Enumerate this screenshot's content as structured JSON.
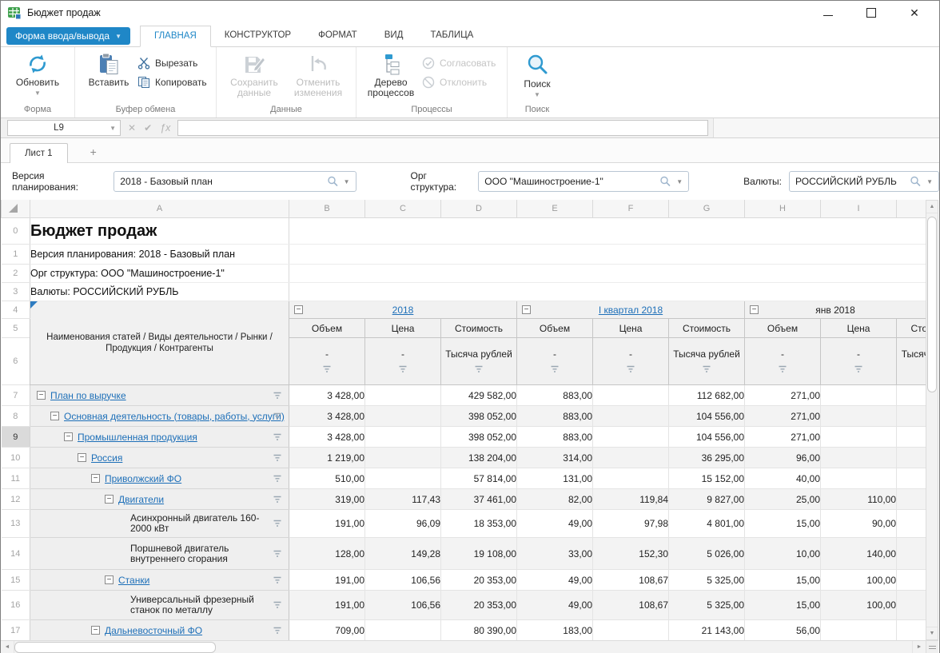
{
  "window": {
    "title": "Бюджет продаж"
  },
  "appbar": {
    "app_button": "Форма ввода/вывода",
    "tabs": [
      {
        "label": "ГЛАВНАЯ",
        "active": true
      },
      {
        "label": "КОНСТРУКТОР",
        "active": false
      },
      {
        "label": "ФОРМАТ",
        "active": false
      },
      {
        "label": "ВИД",
        "active": false
      },
      {
        "label": "ТАБЛИЦА",
        "active": false
      }
    ]
  },
  "ribbon": {
    "groups": {
      "forma": {
        "label": "Форма",
        "refresh": "Обновить"
      },
      "clipboard": {
        "label": "Буфер обмена",
        "paste": "Вставить",
        "cut": "Вырезать",
        "copy": "Копировать"
      },
      "data": {
        "label": "Данные",
        "save": "Сохранить данные",
        "undo": "Отменить изменения"
      },
      "process": {
        "label": "Процессы",
        "tree": "Дерево процессов",
        "approve": "Согласовать",
        "decline": "Отклонить"
      },
      "search": {
        "label": "Поиск",
        "search": "Поиск"
      }
    }
  },
  "formula_bar": {
    "cell_ref": "L9",
    "formula": ""
  },
  "sheet_tabs": {
    "tabs": [
      {
        "label": "Лист 1",
        "active": true
      }
    ],
    "add_label": "+"
  },
  "filters": [
    {
      "label": "Версия планирования:",
      "value": "2018 - Базовый план"
    },
    {
      "label": "Орг структура:",
      "value": "ООО \"Машиностроение-1\""
    },
    {
      "label": "Валюты:",
      "value": "РОССИЙСКИЙ РУБЛЬ"
    }
  ],
  "grid": {
    "columns": [
      "A",
      "B",
      "C",
      "D",
      "E",
      "F",
      "G",
      "H",
      "I"
    ],
    "info_rows": [
      {
        "num": "0",
        "text": "Бюджет продаж",
        "title": true
      },
      {
        "num": "1",
        "text": "Версия планирования: 2018 - Базовый план",
        "title": false
      },
      {
        "num": "2",
        "text": "Орг структура: ООО \"Машиностроение-1\"",
        "title": false
      },
      {
        "num": "3",
        "text": "Валюты: РОССИЙСКИЙ РУБЛЬ",
        "title": false
      }
    ],
    "header_label": "Наименования статей / Виды деятельности / Рынки / Продукция / Контрагенты",
    "groups": [
      {
        "label": "2018",
        "link": true
      },
      {
        "label": "I квартал 2018",
        "link": true
      },
      {
        "label": "янв 2018",
        "link": false
      }
    ],
    "measures": [
      "Объем",
      "Цена",
      "Стоимость",
      "Объем",
      "Цена",
      "Стоимость",
      "Объем",
      "Цена",
      "Стоимость"
    ],
    "units": [
      "-",
      "-",
      "Тысяча рублей",
      "-",
      "-",
      "Тысяча рублей",
      "-",
      "-",
      "Тысяча рублей"
    ],
    "rows": [
      {
        "num": 7,
        "indent": 0,
        "collapsible": true,
        "link": true,
        "selected": false,
        "label": "План по выручке",
        "values": [
          "3 428,00",
          "",
          "429 582,00",
          "883,00",
          "",
          "112 682,00",
          "271,00",
          ""
        ]
      },
      {
        "num": 8,
        "indent": 1,
        "collapsible": true,
        "link": true,
        "selected": false,
        "label": "Основная деятельность (товары, работы, услуги)",
        "values": [
          "3 428,00",
          "",
          "398 052,00",
          "883,00",
          "",
          "104 556,00",
          "271,00",
          ""
        ]
      },
      {
        "num": 9,
        "indent": 2,
        "collapsible": true,
        "link": true,
        "selected": true,
        "label": "Промышленная продукция",
        "values": [
          "3 428,00",
          "",
          "398 052,00",
          "883,00",
          "",
          "104 556,00",
          "271,00",
          ""
        ]
      },
      {
        "num": 10,
        "indent": 3,
        "collapsible": true,
        "link": true,
        "selected": false,
        "label": "Россия",
        "values": [
          "1 219,00",
          "",
          "138 204,00",
          "314,00",
          "",
          "36 295,00",
          "96,00",
          ""
        ]
      },
      {
        "num": 11,
        "indent": 4,
        "collapsible": true,
        "link": true,
        "selected": false,
        "label": "Приволжский ФО",
        "values": [
          "510,00",
          "",
          "57 814,00",
          "131,00",
          "",
          "15 152,00",
          "40,00",
          ""
        ]
      },
      {
        "num": 12,
        "indent": 5,
        "collapsible": true,
        "link": true,
        "selected": false,
        "label": "Двигатели",
        "values": [
          "319,00",
          "117,43",
          "37 461,00",
          "82,00",
          "119,84",
          "9 827,00",
          "25,00",
          "110,00"
        ]
      },
      {
        "num": 13,
        "indent": 6,
        "collapsible": false,
        "link": false,
        "selected": false,
        "label": "Асинхронный двигатель 160-2000 кВт",
        "values": [
          "191,00",
          "96,09",
          "18 353,00",
          "49,00",
          "97,98",
          "4 801,00",
          "15,00",
          "90,00"
        ]
      },
      {
        "num": 14,
        "indent": 6,
        "collapsible": false,
        "link": false,
        "selected": false,
        "label": "Поршневой двигатель внутреннего сгорания",
        "values": [
          "128,00",
          "149,28",
          "19 108,00",
          "33,00",
          "152,30",
          "5 026,00",
          "10,00",
          "140,00"
        ]
      },
      {
        "num": 15,
        "indent": 5,
        "collapsible": true,
        "link": true,
        "selected": false,
        "label": "Станки",
        "values": [
          "191,00",
          "106,56",
          "20 353,00",
          "49,00",
          "108,67",
          "5 325,00",
          "15,00",
          "100,00"
        ]
      },
      {
        "num": 16,
        "indent": 6,
        "collapsible": false,
        "link": false,
        "selected": false,
        "label": "Универсальный фрезерный станок по металлу",
        "values": [
          "191,00",
          "106,56",
          "20 353,00",
          "49,00",
          "108,67",
          "5 325,00",
          "15,00",
          "100,00"
        ]
      },
      {
        "num": 17,
        "indent": 4,
        "collapsible": true,
        "link": true,
        "selected": false,
        "label": "Дальневосточный ФО",
        "values": [
          "709,00",
          "",
          "80 390,00",
          "183,00",
          "",
          "21 143,00",
          "56,00",
          ""
        ]
      }
    ]
  }
}
